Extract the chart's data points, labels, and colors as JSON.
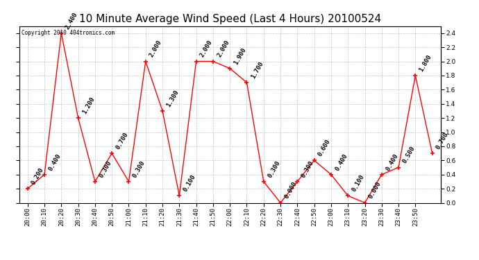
{
  "title": "10 Minute Average Wind Speed (Last 4 Hours) 20100524",
  "copyright": "Copyright 2010 404tronics.com",
  "x_labels": [
    "20:00",
    "20:10",
    "20:20",
    "20:30",
    "20:40",
    "20:50",
    "21:00",
    "21:10",
    "21:20",
    "21:30",
    "21:40",
    "21:50",
    "22:00",
    "22:10",
    "22:20",
    "22:30",
    "22:40",
    "22:50",
    "23:00",
    "23:10",
    "23:20",
    "23:30",
    "23:40",
    "23:50"
  ],
  "y_values": [
    0.2,
    0.4,
    2.4,
    1.2,
    0.3,
    0.7,
    0.3,
    2.0,
    1.3,
    0.1,
    2.0,
    2.0,
    1.9,
    1.7,
    0.3,
    0.0,
    0.3,
    0.6,
    0.4,
    0.1,
    0.0,
    0.4,
    0.5,
    1.8,
    0.7
  ],
  "line_color": "#ff0000",
  "marker_color": "#ff0000",
  "bg_color": "#ffffff",
  "grid_color": "#aaaaaa",
  "ylim": [
    0.0,
    2.5
  ],
  "yticks": [
    0.0,
    0.2,
    0.4,
    0.6,
    0.8,
    1.0,
    1.2,
    1.4,
    1.6,
    1.8,
    2.0,
    2.2,
    2.4
  ],
  "title_fontsize": 11,
  "annotation_fontsize": 6.5
}
